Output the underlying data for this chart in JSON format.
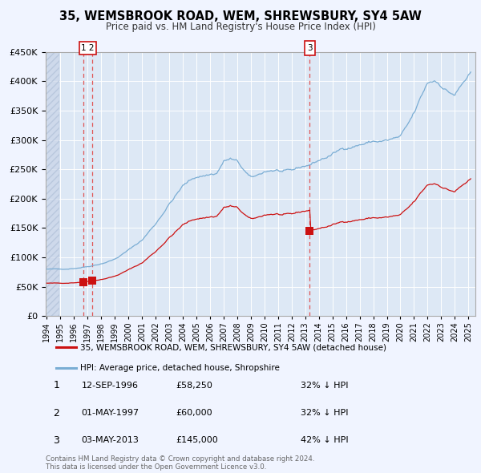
{
  "title": "35, WEMSBROOK ROAD, WEM, SHREWSBURY, SY4 5AW",
  "subtitle": "Price paid vs. HM Land Registry's House Price Index (HPI)",
  "red_legend": "35, WEMSBROOK ROAD, WEM, SHREWSBURY, SY4 5AW (detached house)",
  "blue_legend": "HPI: Average price, detached house, Shropshire",
  "transactions": [
    {
      "num": 1,
      "date_year": 1996.71,
      "price": 58250,
      "label": "12-SEP-1996",
      "pct": "32% ↓ HPI"
    },
    {
      "num": 2,
      "date_year": 1997.33,
      "price": 60000,
      "label": "01-MAY-1997",
      "pct": "32% ↓ HPI"
    },
    {
      "num": 3,
      "date_year": 2013.34,
      "price": 145000,
      "label": "03-MAY-2013",
      "pct": "42% ↓ HPI"
    }
  ],
  "footer1": "Contains HM Land Registry data © Crown copyright and database right 2024.",
  "footer2": "This data is licensed under the Open Government Licence v3.0.",
  "background_color": "#f0f4ff",
  "plot_bg": "#dde8f5",
  "red_color": "#cc1111",
  "blue_color": "#7aadd4",
  "grid_color": "#ffffff",
  "vline_color": "#e05555",
  "hatch_color": "#c8d4e8",
  "ylim": [
    0,
    450000
  ],
  "yticks": [
    0,
    50000,
    100000,
    150000,
    200000,
    250000,
    300000,
    350000,
    400000,
    450000
  ],
  "xmin": 1994.0,
  "xmax": 2025.5,
  "hatch_end": 1994.92
}
